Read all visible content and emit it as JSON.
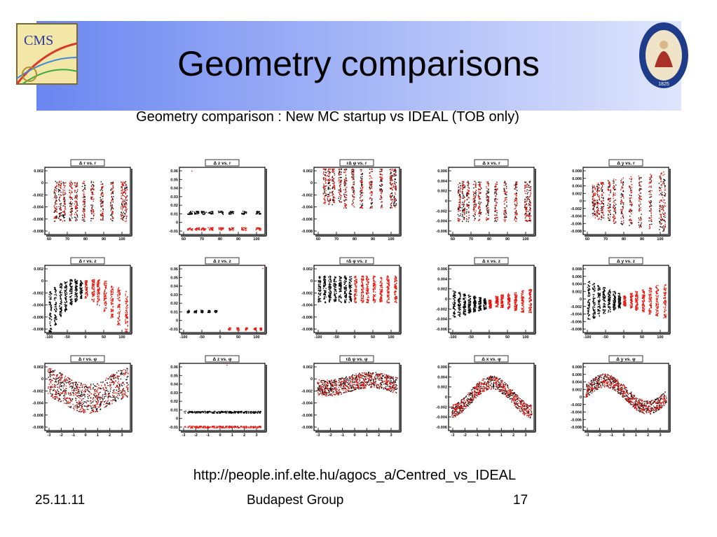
{
  "slide": {
    "title": "Geometry comparisons",
    "subtitle": "Geometry comparison : New MC startup vs IDEAL (TOB only)",
    "url": "http://people.inf.elte.hu/agocs_a/Centred_vs_IDEAL",
    "footer_date": "25.11.11",
    "footer_group": "Budapest Group",
    "page_number": "17",
    "cms_logo_text": "CMS",
    "academy_logo_text": "MAGYAR TUDOMÁNYOS AKADÉMIA 1825"
  },
  "colors": {
    "banner_left": "#6a86f0",
    "banner_right": "#dfe5fc",
    "series_a": "#000000",
    "series_b": "#e8170f"
  },
  "chart_data": [
    {
      "type": "scatter",
      "title": "Δ r vs. r",
      "x_ticks": [
        "60",
        "70",
        "80",
        "90",
        "100"
      ],
      "y_ticks": [
        "0.002",
        "0",
        "-0.002",
        "-0.004",
        "-0.006",
        "-0.008"
      ]
    },
    {
      "type": "scatter",
      "title": "Δ z vs. r",
      "x_ticks": [
        "60",
        "70",
        "80",
        "90",
        "100"
      ],
      "y_ticks": [
        "0.06",
        "0.05",
        "0.04",
        "0.03",
        "0.02",
        "0.01",
        "0",
        "-0.01"
      ]
    },
    {
      "type": "scatter",
      "title": "rΔ φ vs. r",
      "x_ticks": [
        "60",
        "70",
        "80",
        "90",
        "100"
      ],
      "y_ticks": [
        "0.002",
        "0",
        "-0.002",
        "-0.004",
        "-0.006",
        "-0.008"
      ]
    },
    {
      "type": "scatter",
      "title": "Δ x vs. r",
      "x_ticks": [
        "60",
        "70",
        "80",
        "90",
        "100"
      ],
      "y_ticks": [
        "0.006",
        "0.004",
        "0.002",
        "0",
        "-0.002",
        "-0.004",
        "-0.006"
      ]
    },
    {
      "type": "scatter",
      "title": "Δ y vs. r",
      "x_ticks": [
        "60",
        "70",
        "80",
        "90",
        "100"
      ],
      "y_ticks": [
        "0.008",
        "0.006",
        "0.004",
        "0.002",
        "0",
        "-0.002",
        "-0.004",
        "-0.006",
        "-0.008"
      ]
    },
    {
      "type": "scatter",
      "title": "Δ r vs. z",
      "x_ticks": [
        "-100",
        "-50",
        "0",
        "50",
        "100"
      ],
      "y_ticks": [
        "0.002",
        "0",
        "-0.002",
        "-0.004",
        "-0.006",
        "-0.008"
      ]
    },
    {
      "type": "scatter",
      "title": "Δ z vs. z",
      "x_ticks": [
        "-100",
        "-50",
        "0",
        "50",
        "100"
      ],
      "y_ticks": [
        "0.06",
        "0.05",
        "0.04",
        "0.03",
        "0.02",
        "0.01",
        "0",
        "-0.01"
      ]
    },
    {
      "type": "scatter",
      "title": "rΔ φ vs. z",
      "x_ticks": [
        "-100",
        "-50",
        "0",
        "50",
        "100"
      ],
      "y_ticks": [
        "0.002",
        "0",
        "-0.002",
        "-0.004",
        "-0.006",
        "-0.008"
      ]
    },
    {
      "type": "scatter",
      "title": "Δ x vs. z",
      "x_ticks": [
        "-100",
        "-50",
        "0",
        "50",
        "100"
      ],
      "y_ticks": [
        "0.006",
        "0.004",
        "0.002",
        "0",
        "-0.002",
        "-0.004",
        "-0.006"
      ]
    },
    {
      "type": "scatter",
      "title": "Δ y vs. z",
      "x_ticks": [
        "-100",
        "-50",
        "0",
        "50",
        "100"
      ],
      "y_ticks": [
        "0.008",
        "0.006",
        "0.004",
        "0.002",
        "0",
        "-0.002",
        "-0.004",
        "-0.006",
        "-0.008"
      ]
    },
    {
      "type": "scatter",
      "title": "Δ r vs. φ",
      "x_ticks": [
        "-3",
        "-2",
        "-1",
        "0",
        "1",
        "2",
        "3"
      ],
      "y_ticks": [
        "0.002",
        "0",
        "-0.002",
        "-0.004",
        "-0.006",
        "-0.008"
      ]
    },
    {
      "type": "scatter",
      "title": "Δ z vs. φ",
      "x_ticks": [
        "-3",
        "-2",
        "-1",
        "0",
        "1",
        "2",
        "3"
      ],
      "y_ticks": [
        "0.06",
        "0.05",
        "0.04",
        "0.03",
        "0.02",
        "0.01",
        "0",
        "-0.01"
      ]
    },
    {
      "type": "scatter",
      "title": "rΔ φ vs. φ",
      "x_ticks": [
        "-3",
        "-2",
        "-1",
        "0",
        "1",
        "2",
        "3"
      ],
      "y_ticks": [
        "0.002",
        "0",
        "-0.002",
        "-0.004",
        "-0.006",
        "-0.008"
      ]
    },
    {
      "type": "scatter",
      "title": "Δ x vs. φ",
      "x_ticks": [
        "-3",
        "-2",
        "-1",
        "0",
        "1",
        "2",
        "3"
      ],
      "y_ticks": [
        "0.006",
        "0.004",
        "0.002",
        "0",
        "-0.002",
        "-0.004",
        "-0.006"
      ]
    },
    {
      "type": "scatter",
      "title": "Δ y vs. φ",
      "x_ticks": [
        "-3",
        "-2",
        "-1",
        "0",
        "1",
        "2",
        "3"
      ],
      "y_ticks": [
        "0.008",
        "0.006",
        "0.004",
        "0.002",
        "0",
        "-0.002",
        "-0.004",
        "-0.006",
        "-0.008"
      ]
    }
  ]
}
